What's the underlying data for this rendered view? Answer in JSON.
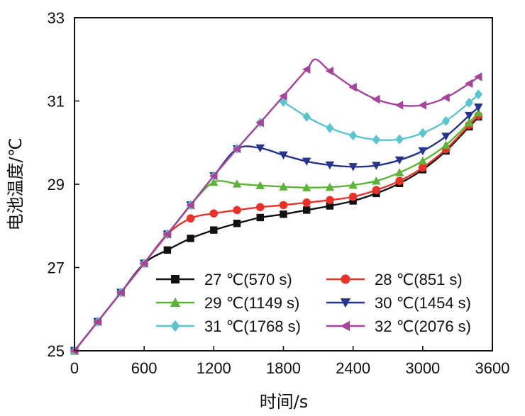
{
  "chart_data": {
    "type": "line",
    "xlabel": "时间/s",
    "ylabel": "电池温度/℃",
    "xlim": [
      0,
      3600
    ],
    "ylim": [
      25,
      33
    ],
    "xticks": [
      "0",
      "600",
      "1200",
      "1800",
      "2400",
      "3000",
      "3600"
    ],
    "yticks": [
      "25",
      "27",
      "29",
      "31",
      "33"
    ],
    "legend_position": "bottom-right",
    "grid": false,
    "series": [
      {
        "name": "27 ℃(570 s)",
        "color": "#111111",
        "marker": "square",
        "x": [
          0,
          200,
          400,
          600,
          800,
          1000,
          1200,
          1400,
          1600,
          1800,
          2000,
          2200,
          2400,
          2600,
          2800,
          3000,
          3200,
          3400,
          3480
        ],
        "y": [
          25.0,
          25.7,
          26.4,
          27.1,
          27.42,
          27.7,
          27.9,
          28.06,
          28.2,
          28.28,
          28.38,
          28.48,
          28.6,
          28.78,
          29.02,
          29.35,
          29.8,
          30.38,
          30.62
        ]
      },
      {
        "name": "28 ℃(851 s)",
        "color": "#e8332a",
        "marker": "circle",
        "x": [
          0,
          200,
          400,
          600,
          800,
          1000,
          1200,
          1400,
          1600,
          1800,
          2000,
          2200,
          2400,
          2600,
          2800,
          3000,
          3200,
          3400,
          3480
        ],
        "y": [
          25.0,
          25.7,
          26.4,
          27.1,
          27.8,
          28.18,
          28.3,
          28.38,
          28.45,
          28.5,
          28.56,
          28.62,
          28.7,
          28.86,
          29.08,
          29.4,
          29.84,
          30.42,
          30.65
        ]
      },
      {
        "name": "29 ℃(1149 s)",
        "color": "#5cb338",
        "marker": "triangle-up",
        "x": [
          0,
          200,
          400,
          600,
          800,
          1000,
          1200,
          1400,
          1600,
          1800,
          2000,
          2200,
          2400,
          2600,
          2800,
          3000,
          3200,
          3400,
          3480
        ],
        "y": [
          25.0,
          25.7,
          26.4,
          27.1,
          27.8,
          28.5,
          29.05,
          29.01,
          28.97,
          28.94,
          28.92,
          28.93,
          28.98,
          29.08,
          29.28,
          29.56,
          29.94,
          30.48,
          30.72
        ]
      },
      {
        "name": "30 ℃(1454 s)",
        "color": "#27348b",
        "marker": "triangle-down",
        "x": [
          0,
          200,
          400,
          600,
          800,
          1000,
          1200,
          1400,
          1600,
          1800,
          2000,
          2200,
          2400,
          2600,
          2800,
          3000,
          3200,
          3400,
          3480
        ],
        "y": [
          25.0,
          25.7,
          26.4,
          27.1,
          27.8,
          28.5,
          29.2,
          29.85,
          29.87,
          29.7,
          29.55,
          29.46,
          29.42,
          29.45,
          29.58,
          29.8,
          30.15,
          30.65,
          30.85
        ]
      },
      {
        "name": "31 ℃(1768 s)",
        "color": "#5bc4cf",
        "marker": "diamond",
        "x": [
          0,
          200,
          400,
          600,
          800,
          1000,
          1200,
          1400,
          1600,
          1800,
          2000,
          2200,
          2400,
          2600,
          2800,
          3000,
          3200,
          3400,
          3480
        ],
        "y": [
          25.0,
          25.7,
          26.4,
          27.1,
          27.8,
          28.5,
          29.2,
          29.85,
          30.48,
          30.98,
          30.62,
          30.35,
          30.17,
          30.07,
          30.08,
          30.23,
          30.52,
          30.96,
          31.16
        ]
      },
      {
        "name": "32 ℃(2076 s)",
        "color": "#a6449a",
        "marker": "triangle-left",
        "x": [
          0,
          200,
          400,
          600,
          800,
          1000,
          1200,
          1400,
          1600,
          1800,
          2000,
          2200,
          2400,
          2600,
          2800,
          3000,
          3200,
          3400,
          3480
        ],
        "y": [
          25.0,
          25.7,
          26.4,
          27.1,
          27.8,
          28.5,
          29.2,
          29.85,
          30.48,
          31.12,
          31.76,
          31.72,
          31.33,
          31.04,
          30.9,
          30.9,
          31.08,
          31.42,
          31.58
        ]
      }
    ],
    "peak_points": [
      {
        "series": 4,
        "x": 1768,
        "y": 31.0
      },
      {
        "series": 5,
        "x": 2076,
        "y": 32.0
      }
    ]
  }
}
